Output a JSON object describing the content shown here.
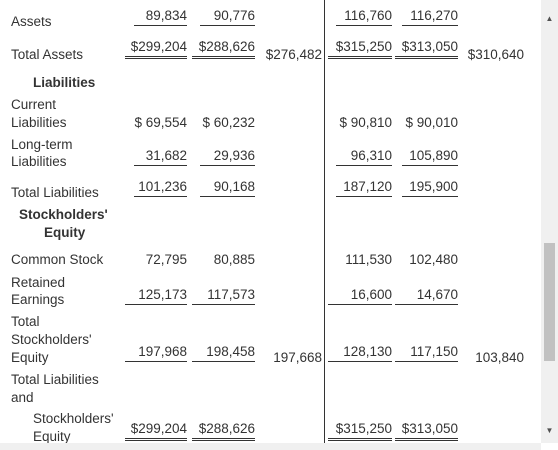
{
  "rows": {
    "assets": {
      "label": "Assets",
      "v1": "89,834",
      "v2": "90,776",
      "v3": "",
      "v4": "116,760",
      "v5": "116,270",
      "v6": ""
    },
    "total_assets": {
      "label": "Total Assets",
      "v1": "$299,204",
      "v2": "$288,626",
      "v3": "$276,482",
      "v4": "$315,250",
      "v5": "$313,050",
      "v6": "$310,640"
    },
    "liabilities_header": {
      "label": "Liabilities"
    },
    "current_liabilities": {
      "label_line1": "Current",
      "label_line2": "Liabilities",
      "v1": "$ 69,554",
      "v2": "$ 60,232",
      "v4": "$ 90,810",
      "v5": "$ 90,010"
    },
    "long_term_liabilities": {
      "label_line1": "Long-term",
      "label_line2": "Liabilities",
      "v1": "31,682",
      "v2": "29,936",
      "v4": "96,310",
      "v5": "105,890"
    },
    "total_liabilities": {
      "label": "Total Liabilities",
      "v1": "101,236",
      "v2": "90,168",
      "v4": "187,120",
      "v5": "195,900"
    },
    "equity_header": {
      "label_line1": "Stockholders'",
      "label_line2": "Equity"
    },
    "common_stock": {
      "label": "Common Stock",
      "v1": "72,795",
      "v2": "80,885",
      "v4": "111,530",
      "v5": "102,480"
    },
    "retained_earnings": {
      "label_line1": "Retained",
      "label_line2": "Earnings",
      "v1": "125,173",
      "v2": "117,573",
      "v4": "16,600",
      "v5": "14,670"
    },
    "total_equity": {
      "label_line1": "Total",
      "label_line2": "Stockholders'",
      "label_line3": "Equity",
      "v1": "197,968",
      "v2": "198,458",
      "v3": "197,668",
      "v4": "128,130",
      "v5": "117,150",
      "v6": "103,840"
    },
    "total_liab_equity": {
      "label_line1": "Total Liabilities",
      "label_line2": "and",
      "label_line3": "Stockholders'",
      "label_line4": "Equity",
      "v1": "$299,204",
      "v2": "$288,626",
      "v4": "$315,250",
      "v5": "$313,050"
    }
  },
  "scrollbar": {
    "up_icon": "triangle-up-icon",
    "down_icon": "triangle-down-icon"
  }
}
